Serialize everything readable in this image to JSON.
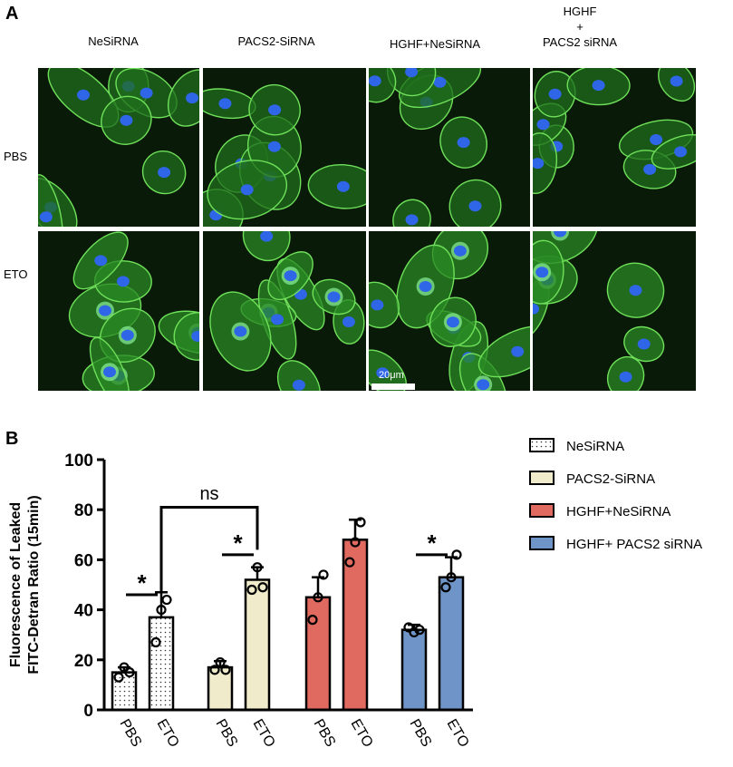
{
  "panel_a": {
    "letter": "A",
    "columns": [
      "NeSiRNA",
      "PACS2-SiRNA",
      "HGHF+NeSiRNA",
      "HGHF\n+\nPACS2 siRNA"
    ],
    "rows": [
      "PBS",
      "ETO"
    ],
    "scale_bar_label": "20μm"
  },
  "panel_b": {
    "letter": "B"
  },
  "chart_data": {
    "type": "bar",
    "title": "",
    "ylabel": "Fluorescence of Leaked\nFITC-Detran Ratio (15min)",
    "xlabel": "",
    "ylim": [
      0,
      100
    ],
    "yticks": [
      0,
      20,
      40,
      60,
      80,
      100
    ],
    "grid": false,
    "legend_position": "top-right",
    "categories": [
      "PBS",
      "ETO"
    ],
    "series": [
      {
        "name": "NeSiRNA",
        "color": "#ffffff",
        "pattern": "dots",
        "values": [
          15,
          37
        ],
        "errors": [
          2,
          10
        ],
        "points": [
          [
            13,
            17,
            15
          ],
          [
            27,
            40,
            44
          ]
        ]
      },
      {
        "name": "PACS2-SiRNA",
        "color": "#efebcb",
        "pattern": "none",
        "values": [
          17,
          52
        ],
        "errors": [
          2.5,
          5
        ],
        "points": [
          [
            16,
            19,
            16
          ],
          [
            48,
            57,
            49
          ]
        ]
      },
      {
        "name": "HGHF+NeSiRNA",
        "color": "#e06960",
        "pattern": "none",
        "values": [
          45,
          68
        ],
        "errors": [
          8,
          8
        ],
        "points": [
          [
            36,
            45,
            54
          ],
          [
            59,
            67,
            75
          ]
        ]
      },
      {
        "name": "HGHF+ PACS2 siRNA",
        "color": "#6f95c8",
        "pattern": "none",
        "values": [
          32,
          53
        ],
        "errors": [
          2,
          8
        ],
        "points": [
          [
            33,
            31,
            32
          ],
          [
            49,
            53,
            62
          ]
        ]
      }
    ],
    "annotations": [
      {
        "text": "*",
        "between": "NeSiRNA PBS-ETO"
      },
      {
        "text": "*",
        "between": "PACS2-SiRNA PBS-ETO"
      },
      {
        "text": "*",
        "between": "HGHF+ PACS2 siRNA PBS-ETO"
      },
      {
        "text": "ns",
        "between": "NeSiRNA ETO vs PACS2-SiRNA ETO"
      }
    ]
  }
}
